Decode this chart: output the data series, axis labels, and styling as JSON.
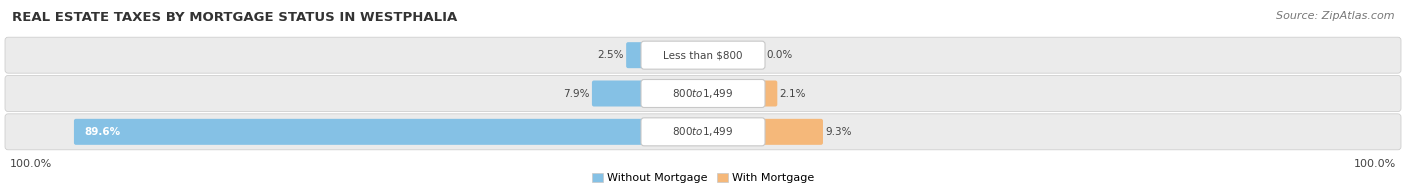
{
  "title": "REAL ESTATE TAXES BY MORTGAGE STATUS IN WESTPHALIA",
  "source": "Source: ZipAtlas.com",
  "rows": [
    {
      "label": "Less than $800",
      "without_pct": 2.5,
      "with_pct": 0.0
    },
    {
      "label": "$800 to $1,499",
      "without_pct": 7.9,
      "with_pct": 2.1
    },
    {
      "label": "$800 to $1,499",
      "without_pct": 89.6,
      "with_pct": 9.3
    }
  ],
  "without_color": "#85C1E5",
  "with_color": "#F5B87A",
  "bar_edge_color": "#C8C8C8",
  "row_bg_color": "#EBEBEB",
  "center_label_bg": "#FFFFFF",
  "title_fontsize": 9.5,
  "source_fontsize": 8,
  "bar_label_fontsize": 7.5,
  "legend_fontsize": 8,
  "axis_label_fontsize": 8,
  "max_pct": 100.0,
  "left_axis_label": "100.0%",
  "right_axis_label": "100.0%",
  "legend_items": [
    "Without Mortgage",
    "With Mortgage"
  ],
  "bg_color": "#FFFFFF"
}
